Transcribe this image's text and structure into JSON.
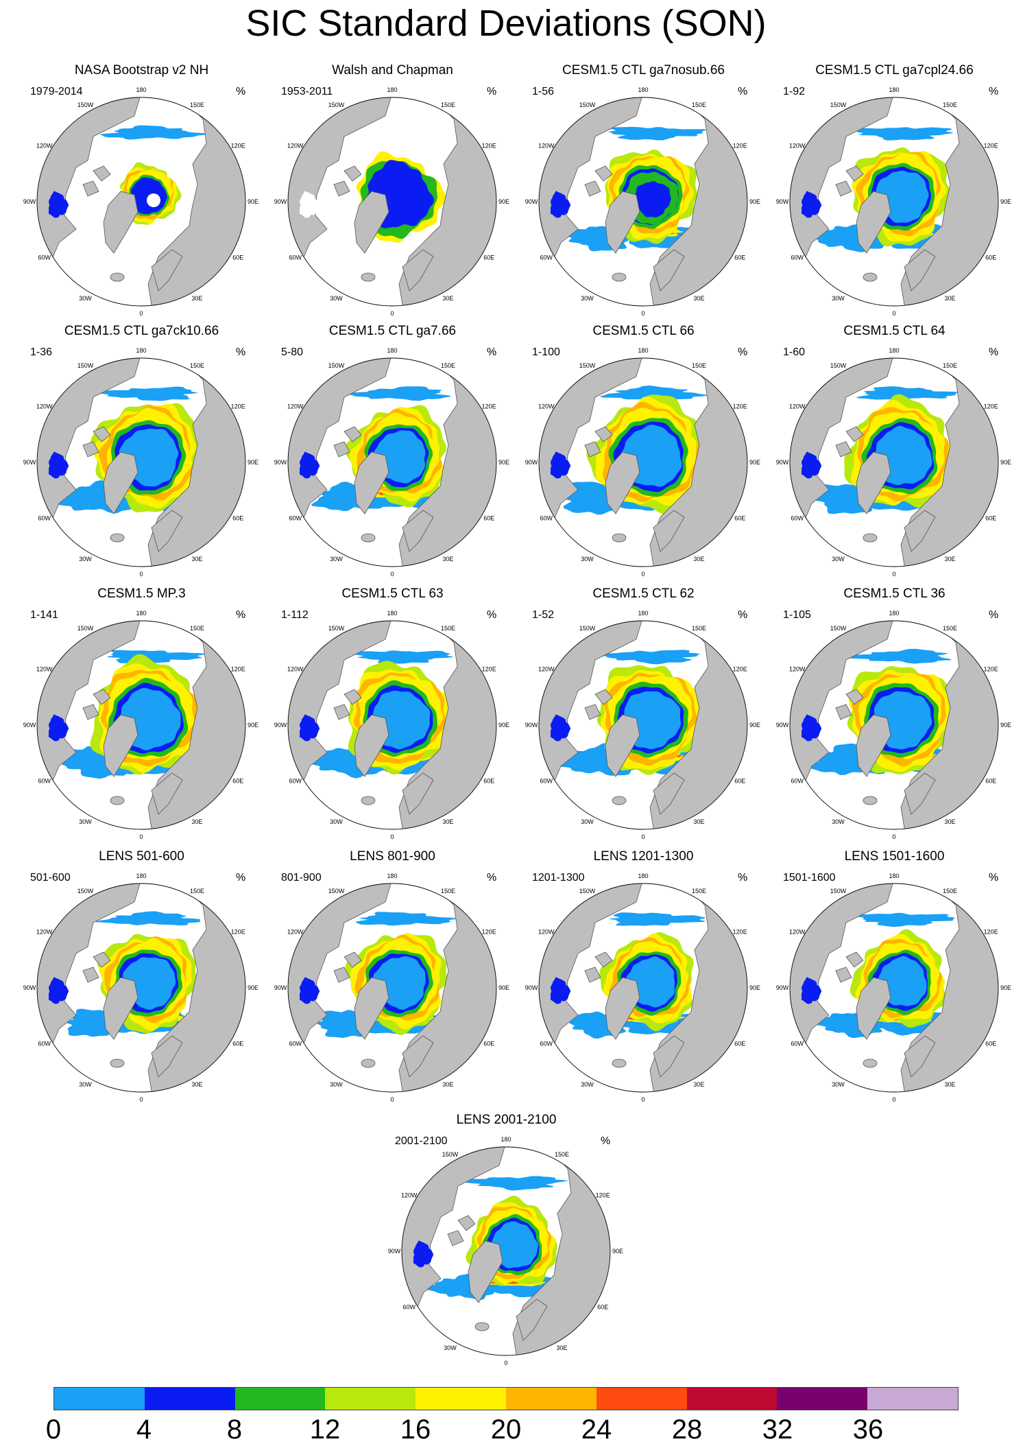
{
  "title": "SIC Standard Deviations (SON)",
  "unit": "%",
  "lon_labels": [
    "180",
    "150E",
    "120E",
    "90E",
    "60E",
    "30E",
    "0",
    "30W",
    "60W",
    "90W",
    "120W",
    "150W"
  ],
  "panels": [
    {
      "title": "NASA Bootstrap v2 NH",
      "years": "1979-2014"
    },
    {
      "title": "Walsh and Chapman",
      "years": "1953-2011"
    },
    {
      "title": "CESM1.5 CTL ga7nosub.66",
      "years": "1-56"
    },
    {
      "title": "CESM1.5 CTL ga7cpl24.66",
      "years": "1-92"
    },
    {
      "title": "CESM1.5 CTL ga7ck10.66",
      "years": "1-36"
    },
    {
      "title": "CESM1.5 CTL ga7.66",
      "years": "5-80"
    },
    {
      "title": "CESM1.5 CTL 66",
      "years": "1-100"
    },
    {
      "title": "CESM1.5 CTL 64",
      "years": "1-60"
    },
    {
      "title": "CESM1.5 MP.3",
      "years": "1-141"
    },
    {
      "title": "CESM1.5 CTL 63",
      "years": "1-112"
    },
    {
      "title": "CESM1.5 CTL 62",
      "years": "1-52"
    },
    {
      "title": "CESM1.5 CTL 36",
      "years": "1-105"
    },
    {
      "title": "LENS 501-600",
      "years": "501-600"
    },
    {
      "title": "LENS 801-900",
      "years": "801-900"
    },
    {
      "title": "LENS 1201-1300",
      "years": "1201-1300"
    },
    {
      "title": "LENS 1501-1600",
      "years": "1501-1600"
    },
    {
      "title": "LENS 2001-2100",
      "years": "2001-2100"
    }
  ],
  "colorbar": {
    "labels": [
      "0",
      "4",
      "8",
      "12",
      "16",
      "20",
      "24",
      "28",
      "32",
      "36"
    ],
    "colors": [
      "#1aa0f5",
      "#0a1cf2",
      "#22b81e",
      "#b8e80c",
      "#fff200",
      "#ffb400",
      "#ff4a10",
      "#be0a32",
      "#7a0070",
      "#c8a8d4"
    ]
  },
  "style": {
    "land_color": "#bebebe",
    "ocean_color": "#ffffff"
  }
}
